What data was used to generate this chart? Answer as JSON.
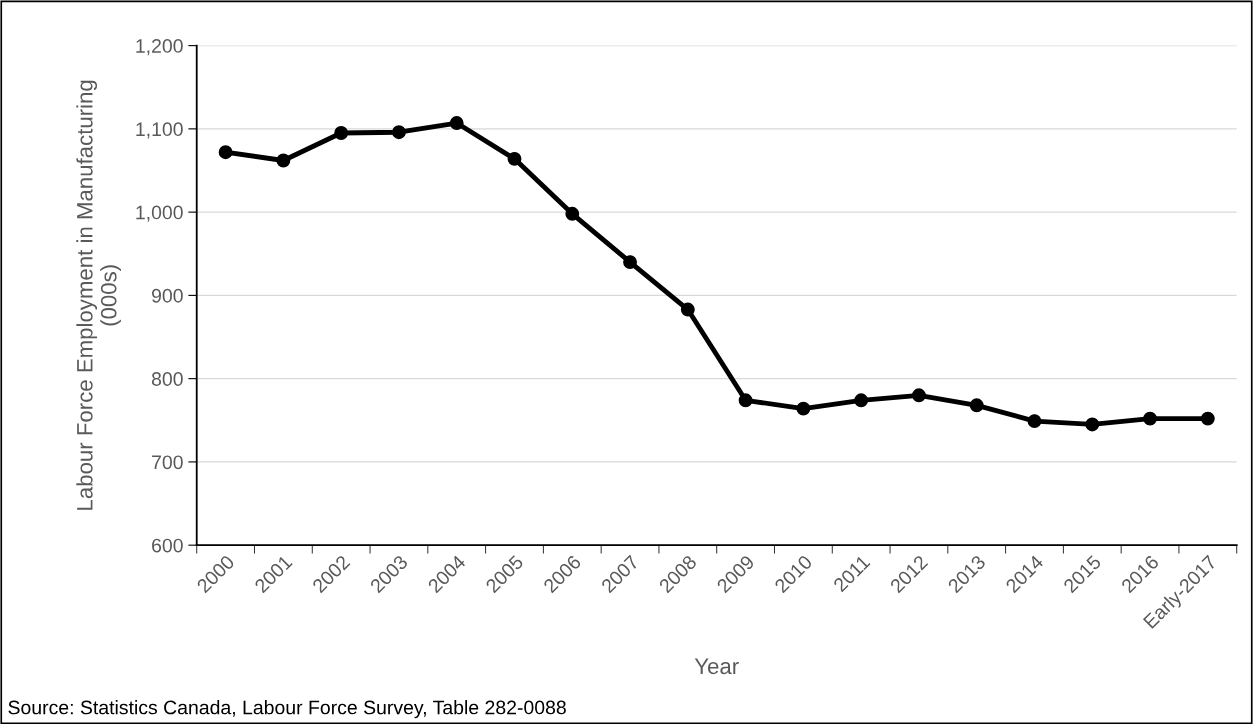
{
  "chart_data": {
    "type": "line",
    "xlabel": "Year",
    "ylabel": "Labour Force Employment in Manufacturing\n(000s)",
    "categories": [
      "2000",
      "2001",
      "2002",
      "2003",
      "2004",
      "2005",
      "2006",
      "2007",
      "2008",
      "2009",
      "2010",
      "2011",
      "2012",
      "2013",
      "2014",
      "2015",
      "2016",
      "Early-2017"
    ],
    "series": [
      {
        "color": "#000000",
        "values": [
          1072,
          1062,
          1095,
          1096,
          1107,
          1064,
          998,
          940,
          883,
          774,
          764,
          774,
          780,
          768,
          749,
          745,
          752,
          752
        ]
      }
    ],
    "ylim": [
      600,
      1200
    ],
    "yticks": [
      {
        "value": 600,
        "label": "600"
      },
      {
        "value": 700,
        "label": "700"
      },
      {
        "value": 800,
        "label": "800"
      },
      {
        "value": 900,
        "label": "900"
      },
      {
        "value": 1000,
        "label": "1,000"
      },
      {
        "value": 1100,
        "label": "1,100"
      },
      {
        "value": 1200,
        "label": "1,200"
      }
    ],
    "grid": "y",
    "marker": "circle",
    "line_style": "solid",
    "legend": false,
    "annotations": [
      "Source: Statistics Canada, Labour Force Survey, Table 282-0088"
    ]
  }
}
